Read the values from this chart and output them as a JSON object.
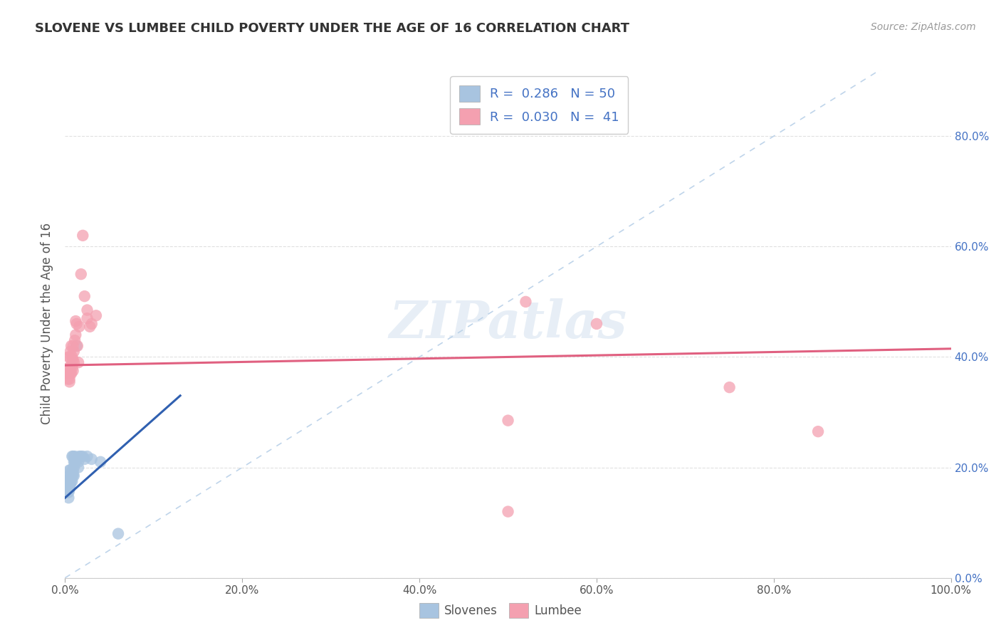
{
  "title": "SLOVENE VS LUMBEE CHILD POVERTY UNDER THE AGE OF 16 CORRELATION CHART",
  "source": "Source: ZipAtlas.com",
  "ylabel": "Child Poverty Under the Age of 16",
  "xlim": [
    0,
    1.0
  ],
  "ylim": [
    0,
    0.92
  ],
  "xticks": [
    0.0,
    0.2,
    0.4,
    0.6,
    0.8,
    1.0
  ],
  "yticks": [
    0.0,
    0.2,
    0.4,
    0.6,
    0.8
  ],
  "xticklabels": [
    "0.0%",
    "20.0%",
    "40.0%",
    "60.0%",
    "80.0%",
    "100.0%"
  ],
  "yticklabels_right": [
    "0.0%",
    "20.0%",
    "40.0%",
    "60.0%",
    "80.0%"
  ],
  "slovene_color": "#a8c4e0",
  "lumbee_color": "#f4a0b0",
  "slovene_line_color": "#3060b0",
  "lumbee_line_color": "#e06080",
  "diag_line_color": "#b8d0e8",
  "legend_R_slovene": "0.286",
  "legend_N_slovene": "50",
  "legend_R_lumbee": "0.030",
  "legend_N_lumbee": "41",
  "watermark": "ZIPatlas",
  "slovene_x": [
    0.002,
    0.002,
    0.002,
    0.002,
    0.003,
    0.003,
    0.003,
    0.003,
    0.004,
    0.004,
    0.004,
    0.005,
    0.005,
    0.005,
    0.005,
    0.005,
    0.005,
    0.006,
    0.006,
    0.006,
    0.006,
    0.007,
    0.007,
    0.007,
    0.007,
    0.008,
    0.008,
    0.008,
    0.009,
    0.009,
    0.009,
    0.009,
    0.01,
    0.01,
    0.01,
    0.011,
    0.011,
    0.012,
    0.013,
    0.013,
    0.015,
    0.015,
    0.016,
    0.018,
    0.02,
    0.022,
    0.025,
    0.03,
    0.04,
    0.06
  ],
  "slovene_y": [
    0.155,
    0.16,
    0.165,
    0.17,
    0.155,
    0.16,
    0.165,
    0.175,
    0.145,
    0.155,
    0.16,
    0.16,
    0.165,
    0.175,
    0.18,
    0.185,
    0.195,
    0.17,
    0.175,
    0.185,
    0.195,
    0.175,
    0.18,
    0.185,
    0.19,
    0.175,
    0.185,
    0.22,
    0.185,
    0.19,
    0.195,
    0.22,
    0.185,
    0.2,
    0.21,
    0.21,
    0.22,
    0.21,
    0.215,
    0.42,
    0.2,
    0.21,
    0.22,
    0.22,
    0.22,
    0.215,
    0.22,
    0.215,
    0.21,
    0.08
  ],
  "lumbee_x": [
    0.002,
    0.003,
    0.003,
    0.004,
    0.004,
    0.005,
    0.005,
    0.005,
    0.006,
    0.006,
    0.006,
    0.007,
    0.007,
    0.007,
    0.008,
    0.008,
    0.009,
    0.009,
    0.009,
    0.01,
    0.01,
    0.011,
    0.012,
    0.012,
    0.013,
    0.014,
    0.015,
    0.016,
    0.018,
    0.02,
    0.022,
    0.025,
    0.025,
    0.028,
    0.03,
    0.035,
    0.5,
    0.52,
    0.6,
    0.75,
    0.85
  ],
  "lumbee_y": [
    0.37,
    0.36,
    0.38,
    0.37,
    0.4,
    0.355,
    0.36,
    0.4,
    0.37,
    0.38,
    0.41,
    0.37,
    0.385,
    0.42,
    0.38,
    0.4,
    0.375,
    0.395,
    0.42,
    0.39,
    0.41,
    0.43,
    0.44,
    0.465,
    0.46,
    0.42,
    0.39,
    0.455,
    0.55,
    0.62,
    0.51,
    0.47,
    0.485,
    0.455,
    0.46,
    0.475,
    0.285,
    0.5,
    0.46,
    0.345,
    0.265
  ],
  "lumbee_outlier_x": [
    0.5
  ],
  "lumbee_outlier_y": [
    0.12
  ],
  "slovene_trendline_x": [
    0.0,
    0.13
  ],
  "slovene_trendline_y": [
    0.145,
    0.33
  ],
  "lumbee_trendline_x": [
    0.0,
    1.0
  ],
  "lumbee_trendline_y": [
    0.385,
    0.415
  ]
}
